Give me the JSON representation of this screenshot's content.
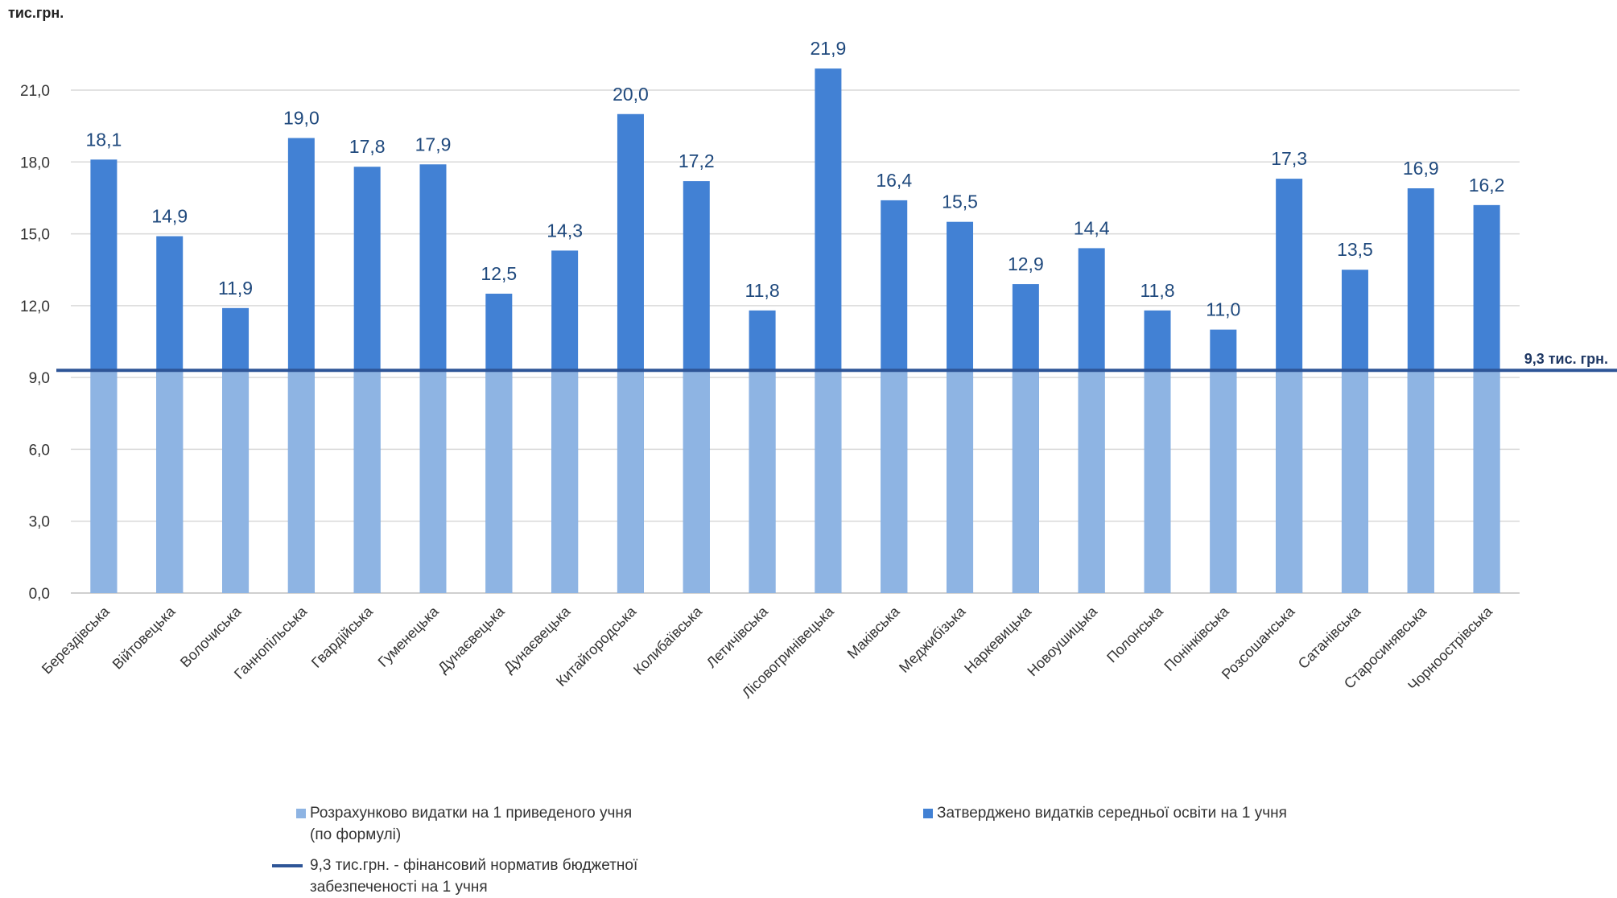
{
  "chart_data": {
    "type": "bar",
    "unit_label": "тис.грн.",
    "ylim": [
      0,
      21
    ],
    "yticks": [
      "0,0",
      "3,0",
      "6,0",
      "9,0",
      "12,0",
      "15,0",
      "18,0",
      "21,0"
    ],
    "grid": true,
    "legend_position": "bottom",
    "categories": [
      "Берездівська",
      "Війтовецька",
      "Волочиська",
      "Ганнопільська",
      "Гвардійська",
      "Гуменецька",
      "Дунаєвецька",
      "Дунаєвецька",
      "Китайгородська",
      "Колибаївська",
      "Летичівська",
      "Лісовогринівецька",
      "Маківська",
      "Меджибізька",
      "Наркевицька",
      "Новоушицька",
      "Полонська",
      "Понінківська",
      "Розсошанська",
      "Сатанівська",
      "Старосинявська",
      "Чорноострівська"
    ],
    "series": [
      {
        "name": "Розрахунково видатки на 1 приведеного учня (по формулі)",
        "color": "#8eb4e3",
        "values": [
          9.3,
          9.3,
          9.3,
          9.3,
          9.3,
          9.3,
          9.3,
          9.3,
          9.3,
          9.3,
          9.3,
          9.3,
          9.3,
          9.3,
          9.3,
          9.3,
          9.3,
          9.3,
          9.3,
          9.3,
          9.3,
          9.3
        ]
      },
      {
        "name": "Затверджено видатків середньої освіти на 1 учня",
        "color": "#4281d4",
        "values": [
          18.1,
          14.9,
          11.9,
          19.0,
          17.8,
          17.9,
          12.5,
          14.3,
          20.0,
          17.2,
          11.8,
          21.9,
          16.4,
          15.5,
          12.9,
          14.4,
          11.8,
          11.0,
          17.3,
          13.5,
          16.9,
          16.2
        ],
        "data_labels": [
          "18,1",
          "14,9",
          "11,9",
          "19,0",
          "17,8",
          "17,9",
          "12,5",
          "14,3",
          "20,0",
          "17,2",
          "11,8",
          "21,9",
          "16,4",
          "15,5",
          "12,9",
          "14,4",
          "11,8",
          "11,0",
          "17,3",
          "13,5",
          "16,9",
          "16,2"
        ]
      }
    ],
    "reference_line": {
      "value": 9.3,
      "label": "9,3 тис. грн.",
      "legend": "9,3 тис.грн. - фінансовий норматив бюджетної забезпеченості на 1 учня",
      "color": "#2e5597"
    }
  },
  "legend": {
    "item1_line1": "Розрахунково видатки на 1 приведеного учня",
    "item1_line2": "(по формулі)",
    "item2": "Затверджено видатків середньої освіти на 1 учня",
    "item3_line1": "9,3 тис.грн. - фінансовий норматив бюджетної",
    "item3_line2": "забезпеченості на 1 учня"
  }
}
